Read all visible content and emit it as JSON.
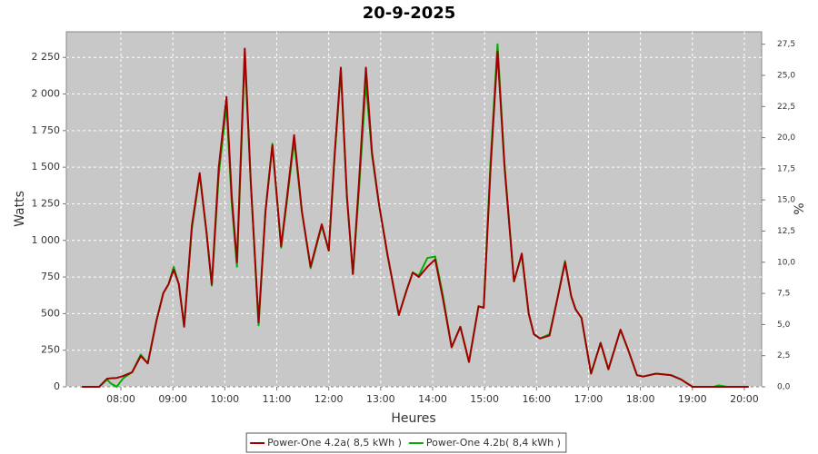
{
  "chart_data": {
    "type": "line",
    "title": "20-9-2025",
    "x_label": "Heures",
    "y_label": "Watts",
    "y2_label": "%",
    "x": [
      "07:15",
      "07:35",
      "07:44",
      "07:48",
      "07:55",
      "08:03",
      "08:13",
      "08:23",
      "08:31",
      "08:41",
      "08:49",
      "08:55",
      "09:01",
      "09:07",
      "09:13",
      "09:22",
      "09:31",
      "09:39",
      "09:45",
      "09:53",
      "10:02",
      "10:08",
      "10:14",
      "10:23",
      "10:30",
      "10:39",
      "10:47",
      "10:55",
      "11:05",
      "11:12",
      "11:20",
      "11:29",
      "11:39",
      "11:52",
      "12:00",
      "12:07",
      "12:14",
      "12:21",
      "12:28",
      "12:35",
      "12:43",
      "12:50",
      "12:58",
      "13:08",
      "13:21",
      "13:30",
      "13:37",
      "13:44",
      "13:54",
      "14:03",
      "14:12",
      "14:22",
      "14:32",
      "14:42",
      "14:53",
      "14:59",
      "15:07",
      "15:15",
      "15:23",
      "15:34",
      "15:43",
      "15:51",
      "15:57",
      "16:04",
      "16:15",
      "16:24",
      "16:33",
      "16:40",
      "16:45",
      "16:52",
      "17:03",
      "17:14",
      "17:23",
      "17:37",
      "17:46",
      "17:56",
      "18:03",
      "18:18",
      "18:35",
      "18:47",
      "19:00",
      "19:25",
      "19:30",
      "19:40",
      "20:05"
    ],
    "series": [
      {
        "name": "Power-One 4.2a( 8,5 kWh )",
        "color": "#a00000",
        "values": [
          0,
          0,
          55,
          58,
          60,
          75,
          100,
          210,
          160,
          450,
          640,
          700,
          800,
          700,
          410,
          1100,
          1460,
          1050,
          700,
          1500,
          1980,
          1300,
          850,
          2310,
          1400,
          440,
          1200,
          1650,
          960,
          1300,
          1720,
          1200,
          820,
          1110,
          930,
          1600,
          2180,
          1300,
          770,
          1400,
          2180,
          1600,
          1250,
          900,
          490,
          660,
          780,
          750,
          820,
          870,
          600,
          270,
          410,
          170,
          550,
          540,
          1500,
          2290,
          1500,
          720,
          910,
          500,
          360,
          330,
          350,
          600,
          850,
          620,
          530,
          470,
          90,
          300,
          120,
          390,
          250,
          80,
          70,
          90,
          80,
          50,
          0,
          0,
          0,
          0,
          0
        ]
      },
      {
        "name": "Power-One 4.2b( 8,4 kWh )",
        "color": "#00b000",
        "values": [
          0,
          0,
          50,
          25,
          0,
          60,
          100,
          220,
          160,
          450,
          640,
          700,
          820,
          700,
          420,
          1080,
          1450,
          1050,
          690,
          1450,
          1920,
          1250,
          820,
          2260,
          1400,
          420,
          1200,
          1660,
          950,
          1280,
          1680,
          1200,
          810,
          1100,
          930,
          1580,
          2160,
          1300,
          770,
          1350,
          2080,
          1580,
          1250,
          900,
          490,
          660,
          780,
          760,
          880,
          890,
          620,
          270,
          410,
          170,
          550,
          540,
          1550,
          2340,
          1520,
          720,
          900,
          500,
          360,
          330,
          360,
          600,
          860,
          620,
          530,
          470,
          90,
          300,
          120,
          390,
          250,
          80,
          70,
          90,
          80,
          50,
          0,
          0,
          10,
          0,
          0
        ]
      }
    ],
    "xlim": [
      "06:57",
      "20:20"
    ],
    "xticks": [
      "08:00",
      "09:00",
      "10:00",
      "11:00",
      "12:00",
      "13:00",
      "14:00",
      "15:00",
      "16:00",
      "17:00",
      "18:00",
      "19:00",
      "20:00"
    ],
    "ylim": [
      0,
      2425
    ],
    "yticks": [
      0,
      250,
      500,
      750,
      {
        "value": 1000,
        "label": "1 000"
      },
      {
        "value": 1250,
        "label": "1 250"
      },
      {
        "value": 1500,
        "label": "1 500"
      },
      {
        "value": 1750,
        "label": "1 750"
      },
      {
        "value": 2000,
        "label": "2 000"
      },
      {
        "value": 2250,
        "label": "2 250"
      }
    ],
    "y2lim": [
      0,
      28.5
    ],
    "y2ticks": [
      {
        "value": 0,
        "label": "0,0"
      },
      {
        "value": 2.5,
        "label": "2,5"
      },
      {
        "value": 5,
        "label": "5,0"
      },
      {
        "value": 7.5,
        "label": "7,5"
      },
      {
        "value": 10,
        "label": "10,0"
      },
      {
        "value": 12.5,
        "label": "12,5"
      },
      {
        "value": 15,
        "label": "15,0"
      },
      {
        "value": 17.5,
        "label": "17,5"
      },
      {
        "value": 20,
        "label": "20,0"
      },
      {
        "value": 22.5,
        "label": "22,5"
      },
      {
        "value": 25,
        "label": "25,0"
      },
      {
        "value": 27.5,
        "label": "27,5"
      }
    ],
    "grid": true,
    "legend": "bottom"
  }
}
